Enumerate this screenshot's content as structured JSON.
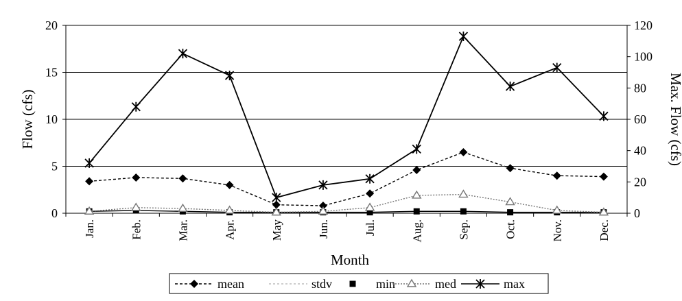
{
  "chart_data": {
    "type": "line",
    "xlabel": "Month",
    "ylabel_left": "Flow (cfs)",
    "ylabel_right": "Max. Flow (cfs)",
    "categories": [
      "Jan.",
      "Feb.",
      "Mar.",
      "Apr.",
      "May",
      "Jun.",
      "Jul.",
      "Aug.",
      "Sep.",
      "Oct.",
      "Nov.",
      "Dec."
    ],
    "ylim_left": [
      0,
      20
    ],
    "yticks_left": [
      0,
      5,
      10,
      15,
      20
    ],
    "ylim_right": [
      0,
      120
    ],
    "yticks_right": [
      0,
      20,
      40,
      60,
      80,
      100,
      120
    ],
    "gridlines": true,
    "legend_position": "bottom",
    "series": [
      {
        "name": "mean",
        "axis": "left",
        "marker": "diamond",
        "dash": "4,3",
        "color": "#000000",
        "values": [
          3.4,
          3.8,
          3.7,
          3.0,
          0.9,
          0.8,
          2.1,
          4.6,
          6.5,
          4.8,
          4.0,
          3.9
        ]
      },
      {
        "name": "stdv",
        "axis": "left",
        "marker": "none",
        "dash": "3,3",
        "color": "#bdbdbd",
        "values": [
          null,
          null,
          null,
          null,
          null,
          null,
          null,
          null,
          null,
          null,
          null,
          null
        ]
      },
      {
        "name": "min",
        "axis": "left",
        "marker": "square",
        "dash": "none",
        "color": "#000000",
        "values": [
          0.2,
          0.3,
          0.2,
          0.1,
          0.1,
          0.1,
          0.1,
          0.2,
          0.2,
          0.1,
          0.1,
          0.1
        ]
      },
      {
        "name": "med",
        "axis": "left",
        "marker": "triangle",
        "dash": "2,2",
        "color": "#777777",
        "values": [
          0.2,
          0.6,
          0.5,
          0.3,
          0.1,
          0.2,
          0.6,
          1.9,
          2.0,
          1.2,
          0.3,
          0.1
        ]
      },
      {
        "name": "max",
        "axis": "right",
        "marker": "star",
        "dash": "none",
        "color": "#000000",
        "values": [
          32,
          68,
          102,
          88,
          10,
          18,
          22,
          41,
          113,
          81,
          93,
          62
        ]
      }
    ]
  }
}
